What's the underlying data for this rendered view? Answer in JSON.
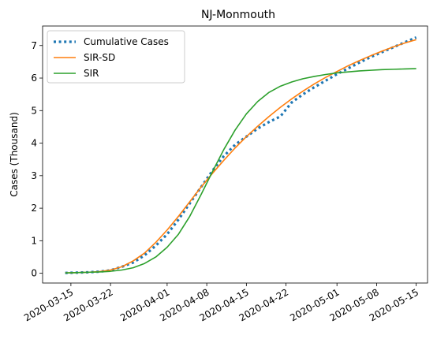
{
  "chart_data": {
    "type": "line",
    "title": "NJ-Monmouth",
    "xlabel": "",
    "ylabel": "Cases (Thousand)",
    "x_type": "date",
    "xlim": [
      "2020-03-10",
      "2020-05-17"
    ],
    "ylim": [
      -0.3,
      7.6
    ],
    "x_ticks": [
      "2020-03-15",
      "2020-03-22",
      "2020-04-01",
      "2020-04-08",
      "2020-04-15",
      "2020-04-22",
      "2020-05-01",
      "2020-05-08",
      "2020-05-15"
    ],
    "y_ticks": [
      0,
      1,
      2,
      3,
      4,
      5,
      6,
      7
    ],
    "grid": false,
    "legend_position": "top-left",
    "series": [
      {
        "name": "Cumulative Cases",
        "color": "#1f77b4",
        "style": "dotted",
        "points": [
          [
            "2020-03-14",
            0.01
          ],
          [
            "2020-03-16",
            0.02
          ],
          [
            "2020-03-18",
            0.03
          ],
          [
            "2020-03-20",
            0.05
          ],
          [
            "2020-03-22",
            0.09
          ],
          [
            "2020-03-24",
            0.2
          ],
          [
            "2020-03-26",
            0.33
          ],
          [
            "2020-03-28",
            0.55
          ],
          [
            "2020-03-30",
            0.85
          ],
          [
            "2020-04-01",
            1.2
          ],
          [
            "2020-04-03",
            1.65
          ],
          [
            "2020-04-05",
            2.15
          ],
          [
            "2020-04-07",
            2.65
          ],
          [
            "2020-04-09",
            3.15
          ],
          [
            "2020-04-11",
            3.6
          ],
          [
            "2020-04-13",
            3.95
          ],
          [
            "2020-04-15",
            4.2
          ],
          [
            "2020-04-17",
            4.45
          ],
          [
            "2020-04-19",
            4.65
          ],
          [
            "2020-04-21",
            4.82
          ],
          [
            "2020-04-23",
            5.25
          ],
          [
            "2020-04-25",
            5.5
          ],
          [
            "2020-04-27",
            5.72
          ],
          [
            "2020-04-29",
            5.92
          ],
          [
            "2020-05-01",
            6.12
          ],
          [
            "2020-05-03",
            6.3
          ],
          [
            "2020-05-05",
            6.48
          ],
          [
            "2020-05-07",
            6.65
          ],
          [
            "2020-05-09",
            6.8
          ],
          [
            "2020-05-11",
            6.95
          ],
          [
            "2020-05-13",
            7.1
          ],
          [
            "2020-05-15",
            7.25
          ]
        ]
      },
      {
        "name": "SIR-SD",
        "color": "#ff7f0e",
        "style": "solid",
        "points": [
          [
            "2020-03-14",
            0.01
          ],
          [
            "2020-03-16",
            0.02
          ],
          [
            "2020-03-18",
            0.03
          ],
          [
            "2020-03-20",
            0.05
          ],
          [
            "2020-03-22",
            0.1
          ],
          [
            "2020-03-24",
            0.2
          ],
          [
            "2020-03-26",
            0.38
          ],
          [
            "2020-03-28",
            0.62
          ],
          [
            "2020-03-30",
            0.95
          ],
          [
            "2020-04-01",
            1.33
          ],
          [
            "2020-04-03",
            1.75
          ],
          [
            "2020-04-05",
            2.2
          ],
          [
            "2020-04-07",
            2.65
          ],
          [
            "2020-04-09",
            3.07
          ],
          [
            "2020-04-11",
            3.47
          ],
          [
            "2020-04-13",
            3.85
          ],
          [
            "2020-04-15",
            4.2
          ],
          [
            "2020-04-17",
            4.52
          ],
          [
            "2020-04-19",
            4.82
          ],
          [
            "2020-04-21",
            5.1
          ],
          [
            "2020-04-23",
            5.36
          ],
          [
            "2020-04-25",
            5.6
          ],
          [
            "2020-04-27",
            5.82
          ],
          [
            "2020-04-29",
            6.02
          ],
          [
            "2020-05-01",
            6.2
          ],
          [
            "2020-05-03",
            6.38
          ],
          [
            "2020-05-05",
            6.54
          ],
          [
            "2020-05-07",
            6.69
          ],
          [
            "2020-05-09",
            6.83
          ],
          [
            "2020-05-11",
            6.96
          ],
          [
            "2020-05-13",
            7.08
          ],
          [
            "2020-05-15",
            7.18
          ]
        ]
      },
      {
        "name": "SIR",
        "color": "#2ca02c",
        "style": "solid",
        "points": [
          [
            "2020-03-14",
            0.01
          ],
          [
            "2020-03-16",
            0.02
          ],
          [
            "2020-03-18",
            0.03
          ],
          [
            "2020-03-20",
            0.04
          ],
          [
            "2020-03-22",
            0.06
          ],
          [
            "2020-03-24",
            0.1
          ],
          [
            "2020-03-26",
            0.17
          ],
          [
            "2020-03-28",
            0.3
          ],
          [
            "2020-03-30",
            0.5
          ],
          [
            "2020-04-01",
            0.8
          ],
          [
            "2020-04-03",
            1.2
          ],
          [
            "2020-04-05",
            1.75
          ],
          [
            "2020-04-07",
            2.42
          ],
          [
            "2020-04-09",
            3.12
          ],
          [
            "2020-04-11",
            3.8
          ],
          [
            "2020-04-13",
            4.4
          ],
          [
            "2020-04-15",
            4.9
          ],
          [
            "2020-04-17",
            5.28
          ],
          [
            "2020-04-19",
            5.56
          ],
          [
            "2020-04-21",
            5.75
          ],
          [
            "2020-04-23",
            5.88
          ],
          [
            "2020-04-25",
            5.98
          ],
          [
            "2020-04-27",
            6.05
          ],
          [
            "2020-04-29",
            6.11
          ],
          [
            "2020-05-01",
            6.16
          ],
          [
            "2020-05-03",
            6.19
          ],
          [
            "2020-05-05",
            6.22
          ],
          [
            "2020-05-07",
            6.24
          ],
          [
            "2020-05-09",
            6.26
          ],
          [
            "2020-05-11",
            6.27
          ],
          [
            "2020-05-13",
            6.28
          ],
          [
            "2020-05-15",
            6.29
          ]
        ]
      }
    ]
  }
}
